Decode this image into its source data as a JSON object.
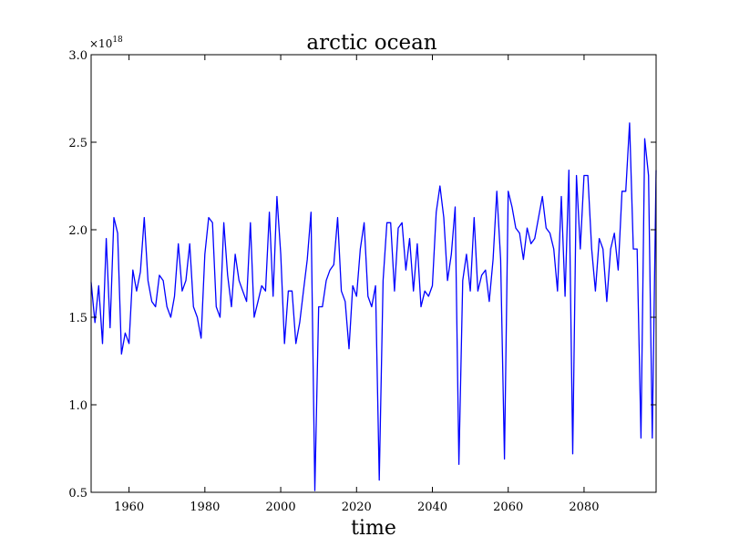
{
  "chart_data": {
    "type": "line",
    "title": "arctic ocean",
    "xlabel": "time",
    "ylabel": "",
    "y_multiplier": "×10",
    "y_multiplier_exponent": "18",
    "xlim": [
      1950,
      2099
    ],
    "ylim": [
      0.5,
      3.0
    ],
    "x_ticks": [
      1960,
      1980,
      2000,
      2020,
      2040,
      2060,
      2080
    ],
    "x_tick_labels": [
      "1960",
      "1980",
      "2000",
      "2020",
      "2040",
      "2060",
      "2080"
    ],
    "y_ticks": [
      0.5,
      1.0,
      1.5,
      2.0,
      2.5,
      3.0
    ],
    "y_tick_labels": [
      "0.5",
      "1.0",
      "1.5",
      "2.0",
      "2.5",
      "3.0"
    ],
    "grid": false,
    "line_color": "#0000ff",
    "x": [
      1950,
      1951,
      1952,
      1953,
      1954,
      1955,
      1956,
      1957,
      1958,
      1959,
      1960,
      1961,
      1962,
      1963,
      1964,
      1965,
      1966,
      1967,
      1968,
      1969,
      1970,
      1971,
      1972,
      1973,
      1974,
      1975,
      1976,
      1977,
      1978,
      1979,
      1980,
      1981,
      1982,
      1983,
      1984,
      1985,
      1986,
      1987,
      1988,
      1989,
      1990,
      1991,
      1992,
      1993,
      1994,
      1995,
      1996,
      1997,
      1998,
      1999,
      2000,
      2001,
      2002,
      2003,
      2004,
      2005,
      2006,
      2007,
      2008,
      2009,
      2010,
      2011,
      2012,
      2013,
      2014,
      2015,
      2016,
      2017,
      2018,
      2019,
      2020,
      2021,
      2022,
      2023,
      2024,
      2025,
      2026,
      2027,
      2028,
      2029,
      2030,
      2031,
      2032,
      2033,
      2034,
      2035,
      2036,
      2037,
      2038,
      2039,
      2040,
      2041,
      2042,
      2043,
      2044,
      2045,
      2046,
      2047,
      2048,
      2049,
      2050,
      2051,
      2052,
      2053,
      2054,
      2055,
      2056,
      2057,
      2058,
      2059,
      2060,
      2061,
      2062,
      2063,
      2064,
      2065,
      2066,
      2067,
      2068,
      2069,
      2070,
      2071,
      2072,
      2073,
      2074,
      2075,
      2076,
      2077,
      2078,
      2079,
      2080,
      2081,
      2082,
      2083,
      2084,
      2085,
      2086,
      2087,
      2088,
      2089,
      2090,
      2091,
      2092,
      2093,
      2094,
      2095,
      2096,
      2097,
      2098,
      2099
    ],
    "series": [
      {
        "values": [
          1.7,
          1.47,
          1.68,
          1.35,
          1.95,
          1.44,
          2.07,
          1.98,
          1.29,
          1.41,
          1.35,
          1.77,
          1.65,
          1.76,
          2.07,
          1.71,
          1.59,
          1.56,
          1.74,
          1.71,
          1.56,
          1.5,
          1.62,
          1.92,
          1.65,
          1.71,
          1.92,
          1.56,
          1.5,
          1.38,
          1.86,
          2.07,
          2.04,
          1.56,
          1.5,
          2.04,
          1.74,
          1.56,
          1.86,
          1.71,
          1.65,
          1.59,
          2.04,
          1.5,
          1.59,
          1.68,
          1.65,
          2.1,
          1.62,
          2.19,
          1.86,
          1.35,
          1.65,
          1.65,
          1.35,
          1.47,
          1.65,
          1.83,
          2.1,
          0.51,
          1.56,
          1.56,
          1.71,
          1.77,
          1.8,
          2.07,
          1.65,
          1.59,
          1.32,
          1.68,
          1.62,
          1.89,
          2.04,
          1.62,
          1.56,
          1.68,
          0.57,
          1.71,
          2.04,
          2.04,
          1.65,
          2.01,
          2.04,
          1.77,
          1.95,
          1.65,
          1.92,
          1.56,
          1.65,
          1.62,
          1.68,
          2.1,
          2.25,
          2.07,
          1.71,
          1.86,
          2.13,
          0.66,
          1.71,
          1.86,
          1.65,
          2.07,
          1.65,
          1.74,
          1.77,
          1.59,
          1.83,
          2.22,
          1.83,
          0.69,
          2.22,
          2.13,
          2.01,
          1.98,
          1.83,
          2.01,
          1.92,
          1.95,
          2.07,
          2.19,
          2.01,
          1.98,
          1.89,
          1.65,
          2.19,
          1.62,
          2.34,
          0.72,
          2.31,
          1.89,
          2.31,
          2.31,
          1.89,
          1.65,
          1.95,
          1.89,
          1.59,
          1.89,
          1.98,
          1.77,
          2.22,
          2.22,
          2.61,
          1.89,
          1.89,
          0.81,
          2.52,
          2.31,
          0.81,
          2.34
        ]
      }
    ]
  }
}
